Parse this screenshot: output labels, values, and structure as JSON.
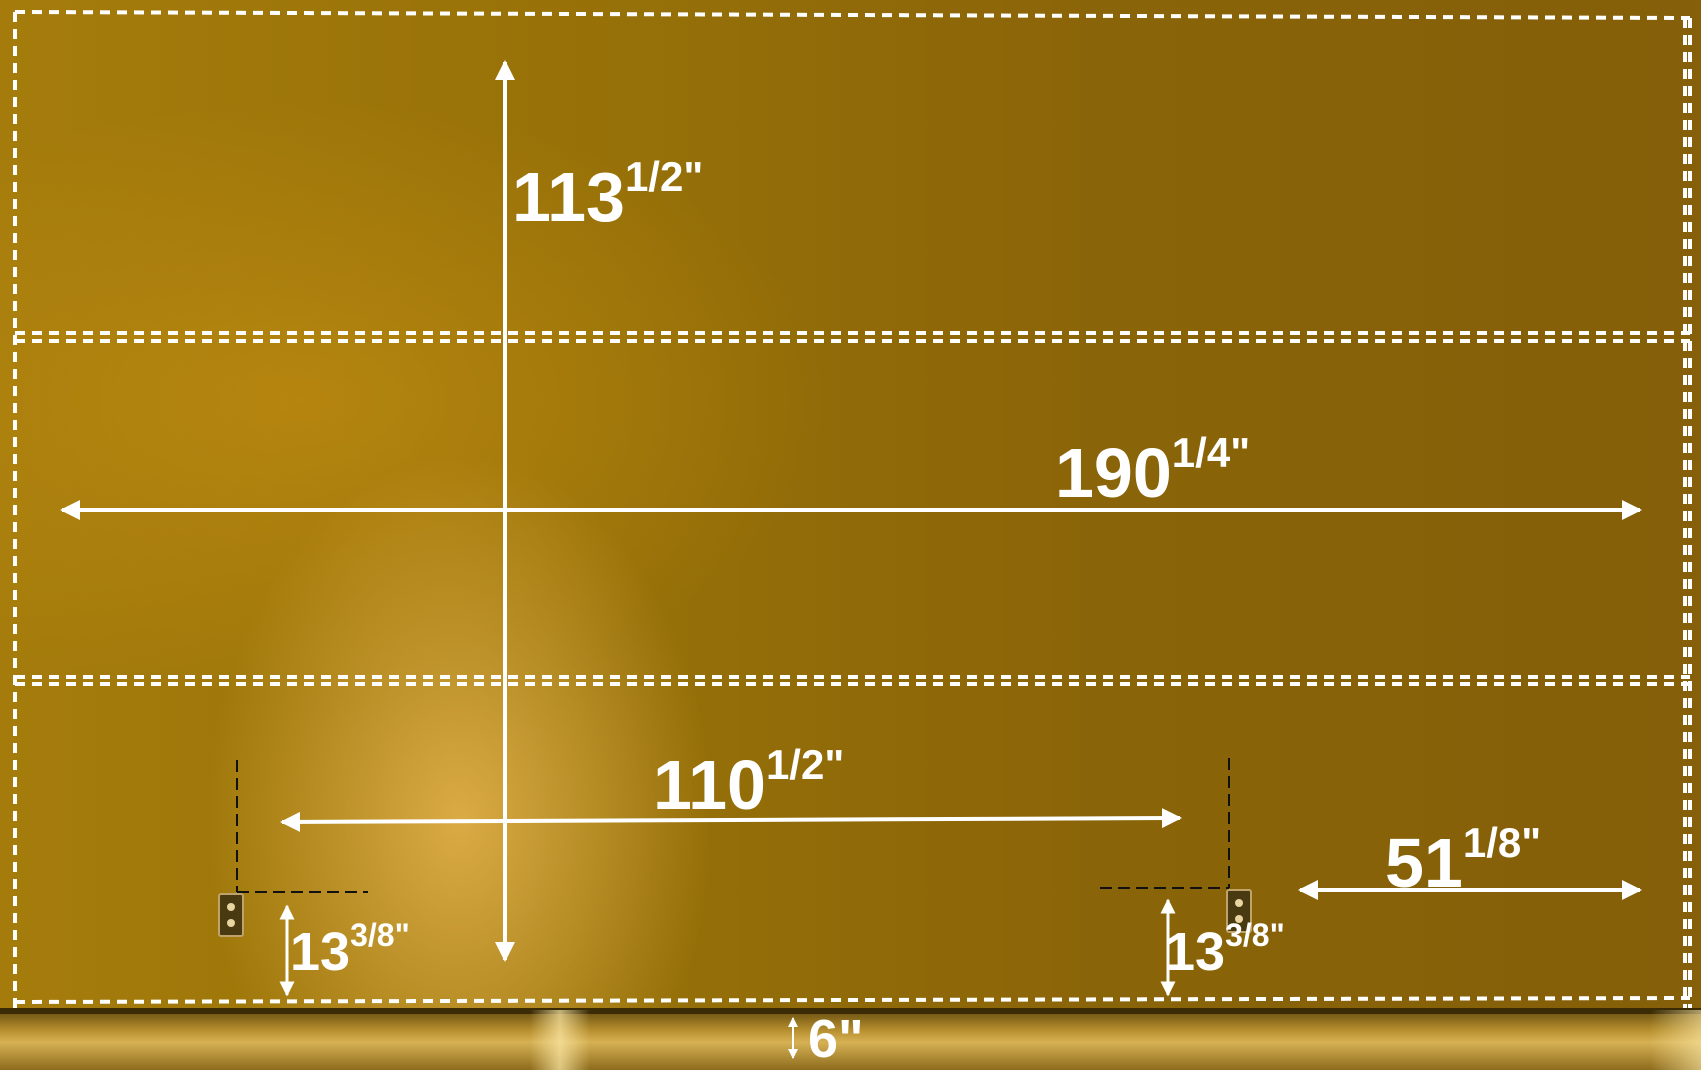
{
  "measurements": {
    "height": {
      "whole": "113",
      "frac": "1/2",
      "unit": "\""
    },
    "width": {
      "whole": "190",
      "frac": "1/4",
      "unit": "\""
    },
    "outlet_span": {
      "whole": "110",
      "frac": "1/2",
      "unit": "\""
    },
    "right_offset": {
      "whole": "51",
      "frac": "1/8",
      "unit": "\""
    },
    "outlet_left_height": {
      "whole": "13",
      "frac": "3/8",
      "unit": "\""
    },
    "outlet_right_height": {
      "whole": "13",
      "frac": "3/8",
      "unit": "\""
    },
    "baseboard": {
      "text": "6\""
    }
  },
  "colors": {
    "wall": "#977108",
    "annotation": "#ffffff",
    "ledge": "#c9a240"
  }
}
